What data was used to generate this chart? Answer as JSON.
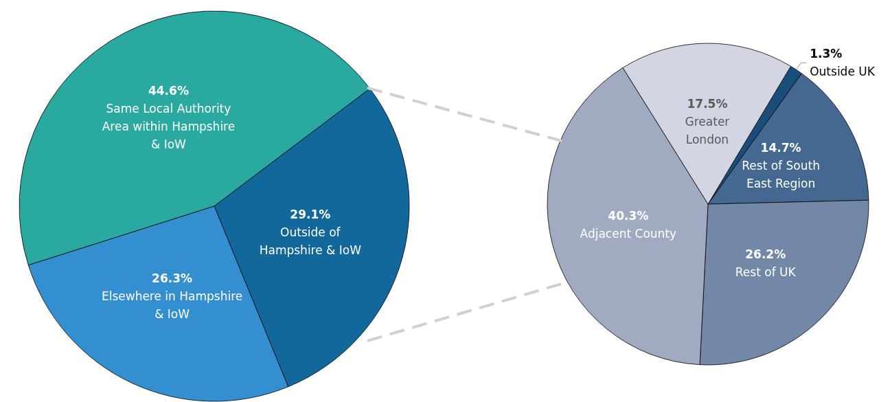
{
  "chart_data": [
    {
      "type": "pie",
      "categories": [
        "Same Local Authority\nArea within Hampshire\n& IoW",
        "Outside of\nHampshire & IoW",
        "Elsewhere in Hampshire\n& IoW"
      ],
      "values": [
        44.6,
        29.1,
        26.3
      ],
      "colors": [
        "#2aa9a0",
        "#12689a",
        "#348fd0"
      ],
      "value_labels": [
        "44.6%",
        "29.1%",
        "26.3%"
      ]
    },
    {
      "type": "pie",
      "categories": [
        "Outside UK",
        "Rest of South\nEast Region",
        "Rest of UK",
        "Adjacent County",
        "Greater\nLondon"
      ],
      "values": [
        1.3,
        14.7,
        26.2,
        40.3,
        17.5
      ],
      "colors": [
        "#1a4e7a",
        "#44688f",
        "#7388a6",
        "#a0aac1",
        "#d3d6e2"
      ],
      "value_labels": [
        "1.3%",
        "14.7%",
        "26.2%",
        "40.3%",
        "17.5%"
      ]
    }
  ]
}
